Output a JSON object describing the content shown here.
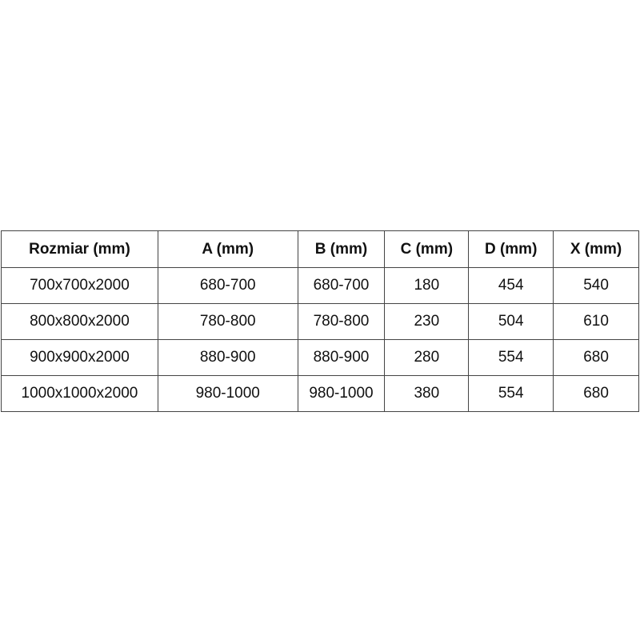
{
  "table": {
    "headers": [
      "Rozmiar (mm)",
      "A (mm)",
      "B (mm)",
      "C (mm)",
      "D (mm)",
      "X (mm)"
    ],
    "rows": [
      [
        "700x700x2000",
        "680-700",
        "680-700",
        "180",
        "454",
        "540"
      ],
      [
        "800x800x2000",
        "780-800",
        "780-800",
        "230",
        "504",
        "610"
      ],
      [
        "900x900x2000",
        "880-900",
        "880-900",
        "280",
        "554",
        "680"
      ],
      [
        "1000x1000x2000",
        "980-1000",
        "980-1000",
        "380",
        "554",
        "680"
      ]
    ]
  }
}
